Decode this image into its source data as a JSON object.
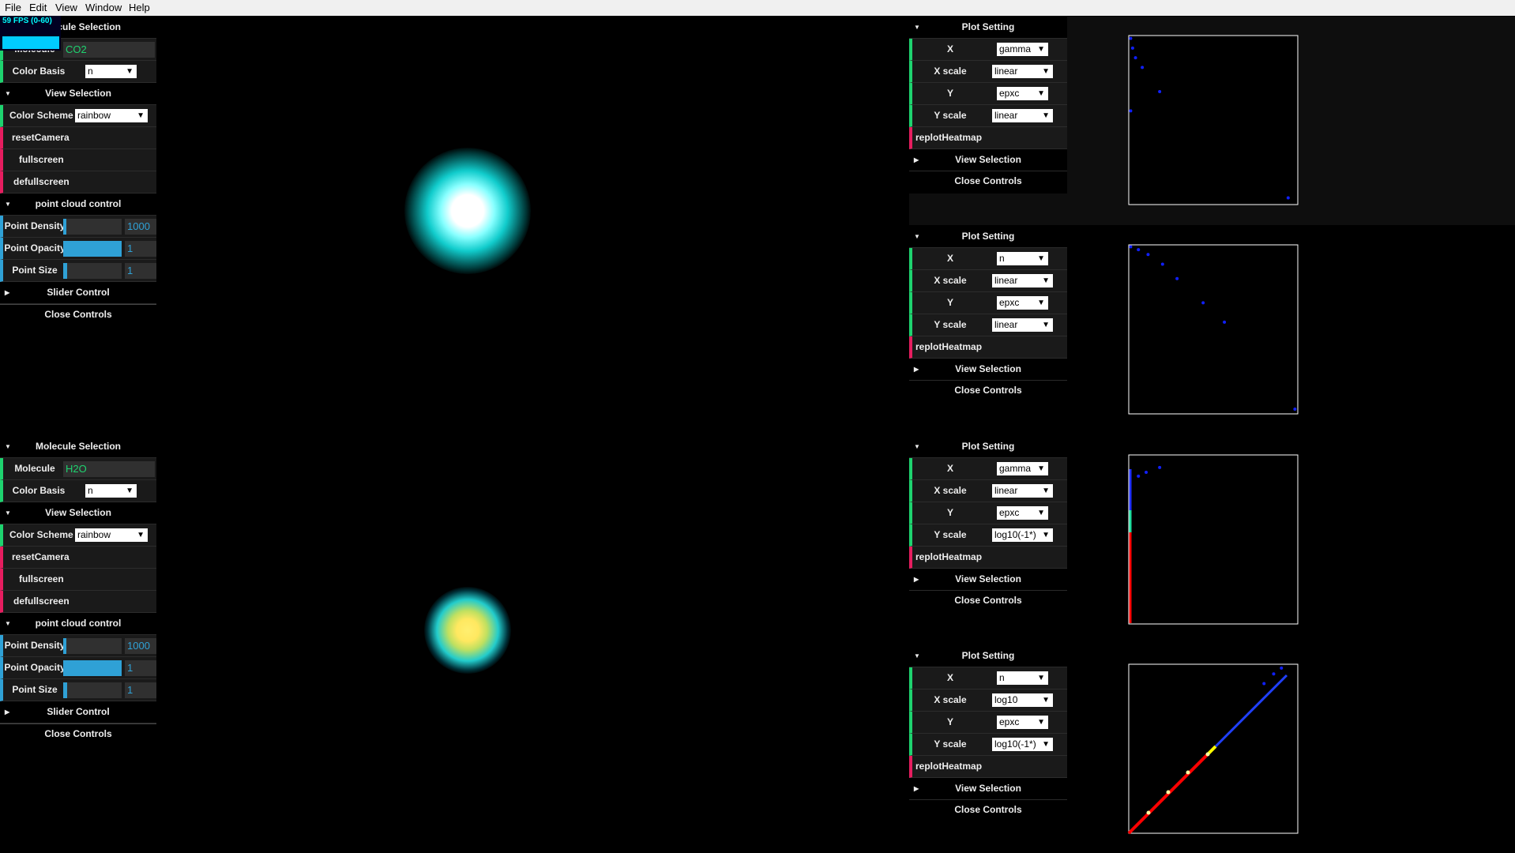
{
  "menu": [
    "File",
    "Edit",
    "View",
    "Window",
    "Help"
  ],
  "fps": "59 FPS (0-60)",
  "left_panels": [
    {
      "molecule_selection": {
        "title": "Molecule Selection",
        "molecule_label": "Molecule",
        "molecule": "CO2",
        "color_basis_label": "Color Basis",
        "color_basis": "n"
      },
      "view_selection": {
        "title": "View Selection",
        "color_scheme_label": "Color Scheme",
        "color_scheme": "rainbow",
        "buttons": [
          "resetCamera",
          "fullscreen",
          "defullscreen"
        ]
      },
      "point_cloud_control": {
        "title": "point cloud control",
        "rows": [
          {
            "label": "Point Density",
            "value": 1000
          },
          {
            "label": "Point Opacity",
            "value": 1
          },
          {
            "label": "Point Size",
            "value": 1
          }
        ]
      },
      "slider_control": "Slider Control",
      "close": "Close Controls"
    },
    {
      "molecule_selection": {
        "title": "Molecule Selection",
        "molecule_label": "Molecule",
        "molecule": "H2O",
        "color_basis_label": "Color Basis",
        "color_basis": "n"
      },
      "view_selection": {
        "title": "View Selection",
        "color_scheme_label": "Color Scheme",
        "color_scheme": "rainbow",
        "buttons": [
          "resetCamera",
          "fullscreen",
          "defullscreen"
        ]
      },
      "point_cloud_control": {
        "title": "point cloud control",
        "rows": [
          {
            "label": "Point Density",
            "value": 1000
          },
          {
            "label": "Point Opacity",
            "value": 1
          },
          {
            "label": "Point Size",
            "value": 1
          }
        ]
      },
      "slider_control": "Slider Control",
      "close": "Close Controls"
    }
  ],
  "right_panels": [
    {
      "title": "Plot Setting",
      "rows": [
        {
          "label": "X",
          "value": "gamma"
        },
        {
          "label": "X scale",
          "value": "linear"
        },
        {
          "label": "Y",
          "value": "epxc"
        },
        {
          "label": "Y scale",
          "value": "linear"
        }
      ],
      "button": "replotHeatmap",
      "view_selection": "View Selection",
      "close": "Close Controls"
    },
    {
      "title": "Plot Setting",
      "rows": [
        {
          "label": "X",
          "value": "n"
        },
        {
          "label": "X scale",
          "value": "linear"
        },
        {
          "label": "Y",
          "value": "epxc"
        },
        {
          "label": "Y scale",
          "value": "linear"
        }
      ],
      "button": "replotHeatmap",
      "view_selection": "View Selection",
      "close": "Close Controls"
    },
    {
      "title": "Plot Setting",
      "rows": [
        {
          "label": "X",
          "value": "gamma"
        },
        {
          "label": "X scale",
          "value": "linear"
        },
        {
          "label": "Y",
          "value": "epxc"
        },
        {
          "label": "Y scale",
          "value": "log10(-1*)"
        }
      ],
      "button": "replotHeatmap",
      "view_selection": "View Selection",
      "close": "Close Controls"
    },
    {
      "title": "Plot Setting",
      "rows": [
        {
          "label": "X",
          "value": "n"
        },
        {
          "label": "X scale",
          "value": "log10"
        },
        {
          "label": "Y",
          "value": "epxc"
        },
        {
          "label": "Y scale",
          "value": "log10(-1*)"
        }
      ],
      "button": "replotHeatmap",
      "view_selection": "View Selection",
      "close": "Close Controls"
    }
  ]
}
